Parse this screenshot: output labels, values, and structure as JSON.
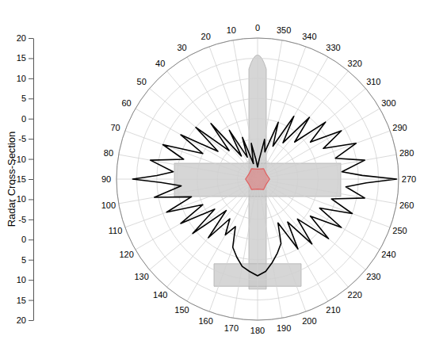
{
  "chart_data": {
    "type": "polar",
    "y_label": "Radar Cross-Section",
    "xlim": [
      0,
      360
    ],
    "xticks": [
      0,
      10,
      20,
      30,
      40,
      50,
      60,
      70,
      80,
      90,
      100,
      110,
      120,
      130,
      140,
      150,
      160,
      170,
      180,
      190,
      200,
      210,
      220,
      230,
      240,
      250,
      260,
      270,
      280,
      290,
      300,
      310,
      320,
      330,
      340,
      350
    ],
    "ylim": [
      -15,
      20
    ],
    "yticks": [
      -15,
      -10,
      -5,
      0,
      5,
      10,
      15,
      20
    ],
    "grid": true,
    "series": [
      {
        "color": "#000000",
        "x": [
          0,
          5,
          10,
          15,
          20,
          25,
          30,
          35,
          40,
          45,
          50,
          55,
          60,
          65,
          70,
          75,
          80,
          85,
          88,
          90,
          92,
          95,
          100,
          105,
          110,
          115,
          120,
          125,
          130,
          135,
          140,
          145,
          150,
          155,
          160,
          165,
          170,
          175,
          180,
          185,
          190,
          195,
          200,
          205,
          210,
          215,
          220,
          225,
          230,
          235,
          240,
          245,
          250,
          255,
          260,
          265,
          268,
          270,
          272,
          275,
          280,
          285,
          290,
          295,
          300,
          305,
          310,
          315,
          320,
          325,
          330,
          335,
          340,
          345,
          350,
          355
        ],
        "values": [
          -12,
          -10,
          -6,
          -11,
          -4,
          -9,
          -1,
          -8,
          3,
          -5,
          5,
          -3,
          7,
          0,
          10,
          4,
          12,
          6,
          10,
          16,
          9,
          4,
          11,
          2,
          9,
          0,
          7,
          -2,
          6,
          -4,
          4,
          -3,
          1,
          -2,
          3,
          5,
          7,
          8,
          9,
          8,
          6,
          4,
          2,
          -3,
          5,
          -2,
          6,
          -1,
          8,
          1,
          9,
          2,
          10,
          4,
          12,
          7,
          12,
          19.5,
          11,
          6,
          12,
          5,
          11,
          3,
          9,
          1,
          7,
          -2,
          5,
          -4,
          3,
          -6,
          0,
          -8,
          -5,
          -10
        ]
      },
      {
        "color": "#e06060",
        "x": [
          0,
          30,
          60,
          90,
          120,
          150,
          180,
          210,
          240,
          270,
          300,
          330
        ],
        "values": [
          -12.5,
          -12,
          -12.5,
          -12,
          -12.5,
          -12,
          -12.5,
          -12,
          -12.5,
          -12,
          -12.5,
          -12
        ]
      }
    ]
  }
}
